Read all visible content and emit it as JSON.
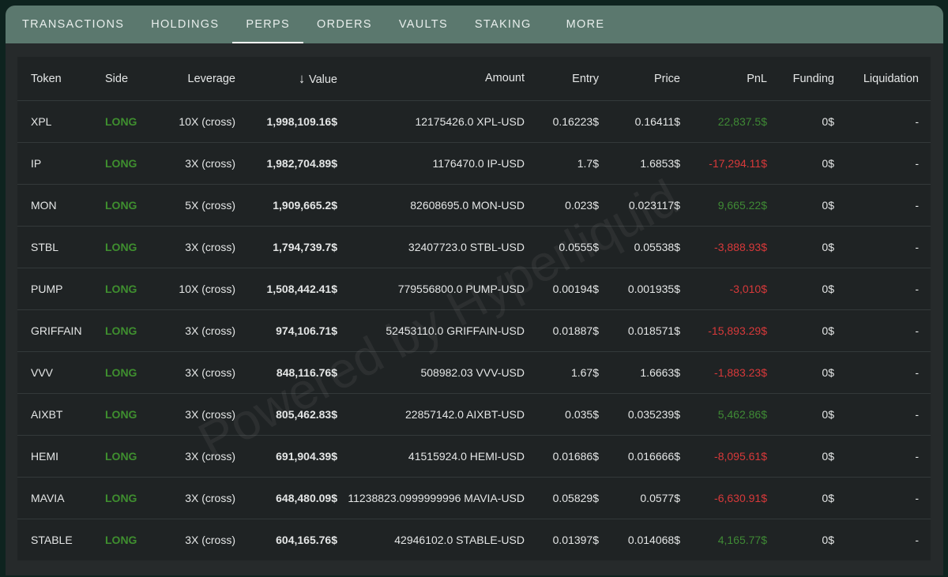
{
  "tabs": [
    {
      "label": "TRANSACTIONS"
    },
    {
      "label": "HOLDINGS"
    },
    {
      "label": "PERPS",
      "active": true
    },
    {
      "label": "ORDERS"
    },
    {
      "label": "VAULTS"
    },
    {
      "label": "STAKING"
    },
    {
      "label": "MORE"
    }
  ],
  "columns": [
    "Token",
    "Side",
    "Leverage",
    "Value",
    "Amount",
    "Entry",
    "Price",
    "PnL",
    "Funding",
    "Liquidation"
  ],
  "sort": {
    "column": "Value",
    "direction": "descending",
    "icon": "arrow-down-icon"
  },
  "watermark": "Powered by Hyperliquid",
  "colors": {
    "long": "#3f8f2f",
    "pnl_positive": "#3f8a35",
    "pnl_negative": "#d8393a",
    "tab_bar": "#5b786e"
  },
  "rows": [
    {
      "token": "XPL",
      "side": "LONG",
      "leverage": "10X (cross)",
      "value": "1,998,109.16$",
      "amount": "12175426.0 XPL-USD",
      "entry": "0.16223$",
      "price": "0.16411$",
      "pnl": "22,837.5$",
      "pnl_sign": "pos",
      "funding": "0$",
      "liquidation": "-"
    },
    {
      "token": "IP",
      "side": "LONG",
      "leverage": "3X (cross)",
      "value": "1,982,704.89$",
      "amount": "1176470.0 IP-USD",
      "entry": "1.7$",
      "price": "1.6853$",
      "pnl": "-17,294.11$",
      "pnl_sign": "neg",
      "funding": "0$",
      "liquidation": "-"
    },
    {
      "token": "MON",
      "side": "LONG",
      "leverage": "5X (cross)",
      "value": "1,909,665.2$",
      "amount": "82608695.0 MON-USD",
      "entry": "0.023$",
      "price": "0.023117$",
      "pnl": "9,665.22$",
      "pnl_sign": "pos",
      "funding": "0$",
      "liquidation": "-"
    },
    {
      "token": "STBL",
      "side": "LONG",
      "leverage": "3X (cross)",
      "value": "1,794,739.7$",
      "amount": "32407723.0 STBL-USD",
      "entry": "0.0555$",
      "price": "0.05538$",
      "pnl": "-3,888.93$",
      "pnl_sign": "neg",
      "funding": "0$",
      "liquidation": "-"
    },
    {
      "token": "PUMP",
      "side": "LONG",
      "leverage": "10X (cross)",
      "value": "1,508,442.41$",
      "amount": "779556800.0 PUMP-USD",
      "entry": "0.00194$",
      "price": "0.001935$",
      "pnl": "-3,010$",
      "pnl_sign": "neg",
      "funding": "0$",
      "liquidation": "-"
    },
    {
      "token": "GRIFFAIN",
      "side": "LONG",
      "leverage": "3X (cross)",
      "value": "974,106.71$",
      "amount": "52453110.0 GRIFFAIN-USD",
      "entry": "0.01887$",
      "price": "0.018571$",
      "pnl": "-15,893.29$",
      "pnl_sign": "neg",
      "funding": "0$",
      "liquidation": "-"
    },
    {
      "token": "VVV",
      "side": "LONG",
      "leverage": "3X (cross)",
      "value": "848,116.76$",
      "amount": "508982.03 VVV-USD",
      "entry": "1.67$",
      "price": "1.6663$",
      "pnl": "-1,883.23$",
      "pnl_sign": "neg",
      "funding": "0$",
      "liquidation": "-"
    },
    {
      "token": "AIXBT",
      "side": "LONG",
      "leverage": "3X (cross)",
      "value": "805,462.83$",
      "amount": "22857142.0 AIXBT-USD",
      "entry": "0.035$",
      "price": "0.035239$",
      "pnl": "5,462.86$",
      "pnl_sign": "pos",
      "funding": "0$",
      "liquidation": "-"
    },
    {
      "token": "HEMI",
      "side": "LONG",
      "leverage": "3X (cross)",
      "value": "691,904.39$",
      "amount": "41515924.0 HEMI-USD",
      "entry": "0.01686$",
      "price": "0.016666$",
      "pnl": "-8,095.61$",
      "pnl_sign": "neg",
      "funding": "0$",
      "liquidation": "-"
    },
    {
      "token": "MAVIA",
      "side": "LONG",
      "leverage": "3X (cross)",
      "value": "648,480.09$",
      "amount": "11238823.0999999996 MAVIA-USD",
      "entry": "0.05829$",
      "price": "0.0577$",
      "pnl": "-6,630.91$",
      "pnl_sign": "neg",
      "funding": "0$",
      "liquidation": "-"
    },
    {
      "token": "STABLE",
      "side": "LONG",
      "leverage": "3X (cross)",
      "value": "604,165.76$",
      "amount": "42946102.0 STABLE-USD",
      "entry": "0.01397$",
      "price": "0.014068$",
      "pnl": "4,165.77$",
      "pnl_sign": "pos",
      "funding": "0$",
      "liquidation": "-"
    }
  ]
}
